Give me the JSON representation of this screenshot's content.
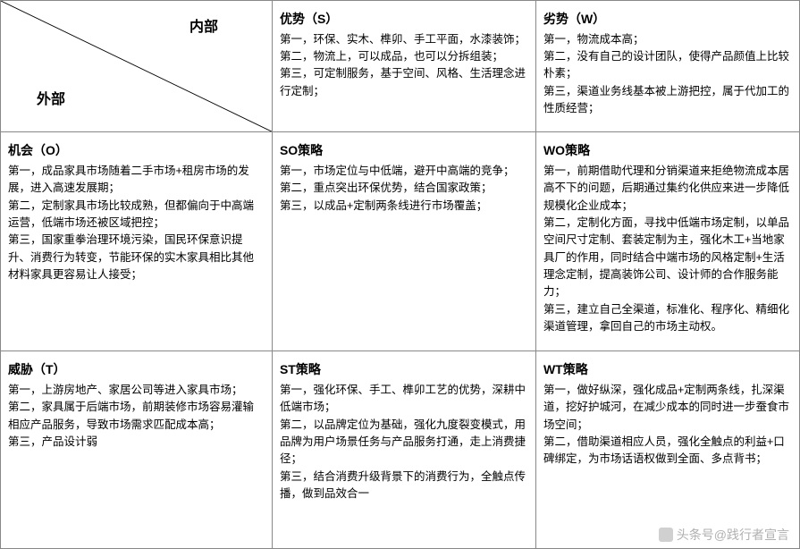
{
  "diag": {
    "top": "内部",
    "bottom": "外部"
  },
  "s": {
    "title": "优势（S）",
    "body": "第一，环保、实木、榫卯、手工平面，水漆装饰；\n第二，物流上，可以成品，也可以分拆组装；\n第三，可定制服务，基于空间、风格、生活理念进行定制；"
  },
  "w": {
    "title": "劣势（W）",
    "body": "第一，物流成本高；\n第二，没有自己的设计团队，使得产品颜值上比较朴素；\n第三，渠道业务线基本被上游把控，属于代加工的性质经营；"
  },
  "o": {
    "title": "机会（O）",
    "body": "第一，成品家具市场随着二手市场+租房市场的发展，进入高速发展期；\n第二，定制家具市场比较成熟，但都偏向于中高端运营，低端市场还被区域把控；\n第三，国家重拳治理环境污染，国民环保意识提升、消费行为转变，节能环保的实木家具相比其他材料家具更容易让人接受；"
  },
  "so": {
    "title": "SO策略",
    "body": "第一，市场定位与中低端，避开中高端的竞争；\n第二，重点突出环保优势，结合国家政策；\n第三，以成品+定制两条线进行市场覆盖；"
  },
  "wo": {
    "title": "WO策略",
    "body": "第一，前期借助代理和分销渠道来拒绝物流成本居高不下的问题，后期通过集约化供应来进一步降低规模化企业成本；\n第二，定制化方面，寻找中低端市场定制，以单品空间尺寸定制、套装定制为主，强化木工+当地家具厂的作用，同时结合中端市场的风格定制+生活理念定制，提高装饰公司、设计师的合作服务能力；\n第三，建立自己全渠道，标准化、程序化、精细化渠道管理，拿回自己的市场主动权。"
  },
  "t": {
    "title": "威胁（T）",
    "body": "第一，上游房地产、家居公司等进入家具市场；\n第二，家具属于后端市场，前期装修市场容易灌输相应产品服务，导致市场需求匹配成本高；\n第三，产品设计弱"
  },
  "st": {
    "title": "ST策略",
    "body": "第一，强化环保、手工、榫卯工艺的优势，深耕中低端市场；\n第二，以品牌定位为基础，强化九度裂变模式，用品牌为用户场景任务与产品服务打通，走上消费捷径；\n第三，结合消费升级背景下的消费行为，全触点传播，做到品效合一"
  },
  "wt": {
    "title": "WT策略",
    "body": "第一，做好纵深，强化成品+定制两条线，扎深渠道，挖好护城河，在减少成本的同时进一步蚕食市场空间；\n第二，借助渠道相应人员，强化全触点的利益+口碑绑定，为市场话语权做到全面、多点背书；"
  },
  "watermark": "头条号@践行者宣言"
}
